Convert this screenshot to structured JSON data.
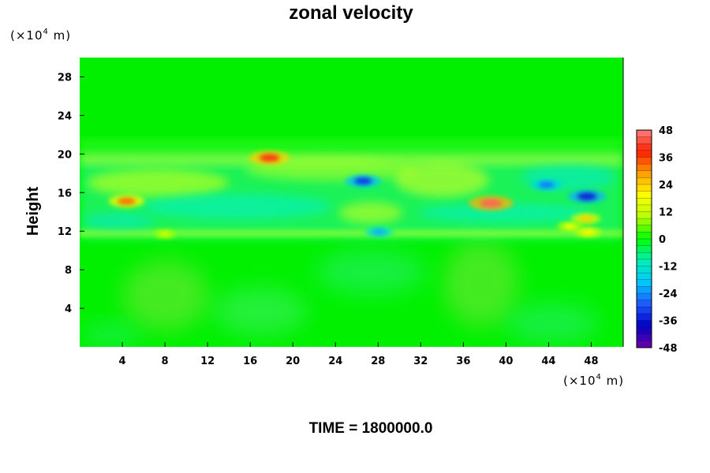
{
  "chart_data": {
    "type": "heatmap",
    "title": "zonal velocity",
    "ylabel": "Height",
    "x_unit_label": "(×10",
    "x_unit_exp": "4",
    "x_unit_suffix": " m)",
    "y_unit_label": "(×10",
    "y_unit_exp": "4",
    "y_unit_suffix": " m)",
    "xlim": [
      0,
      51
    ],
    "ylim": [
      0,
      30
    ],
    "x_ticks": [
      "4",
      "8",
      "12",
      "16",
      "20",
      "24",
      "28",
      "32",
      "36",
      "40",
      "44",
      "48"
    ],
    "y_ticks": [
      "4",
      "8",
      "12",
      "16",
      "20",
      "24",
      "28"
    ],
    "colorbar": {
      "min": -48,
      "max": 48,
      "step": 3,
      "ticks": [
        "48",
        "36",
        "24",
        "12",
        "0",
        "-12",
        "-24",
        "-36",
        "-48"
      ]
    },
    "background_value": 0,
    "features": [
      {
        "x": 17.8,
        "y": 19.6,
        "value": 40
      },
      {
        "x": 26.6,
        "y": 17.2,
        "value": -33
      },
      {
        "x": 38.6,
        "y": 14.9,
        "value": 45
      },
      {
        "x": 43.8,
        "y": 16.8,
        "value": -27
      },
      {
        "x": 47.6,
        "y": 15.6,
        "value": -36
      },
      {
        "x": 4.4,
        "y": 15.1,
        "value": 33
      },
      {
        "x": 47.5,
        "y": 13.3,
        "value": 24
      },
      {
        "x": 28.1,
        "y": 11.9,
        "value": -22
      },
      {
        "x": 47.7,
        "y": 11.9,
        "value": 20
      },
      {
        "x": 8.0,
        "y": 11.7,
        "value": 14
      },
      {
        "x": 46.0,
        "y": 12.5,
        "value": 18
      }
    ]
  },
  "footer": {
    "time_label": "TIME = 1800000.0"
  },
  "colors": {
    "colorbar_stops": [
      "#7000a8",
      "#0000c8",
      "#1e5aff",
      "#00c8ff",
      "#00f0b4",
      "#00ff00",
      "#b4ff00",
      "#ffff00",
      "#ffa000",
      "#ff2000",
      "#ff8080"
    ]
  }
}
